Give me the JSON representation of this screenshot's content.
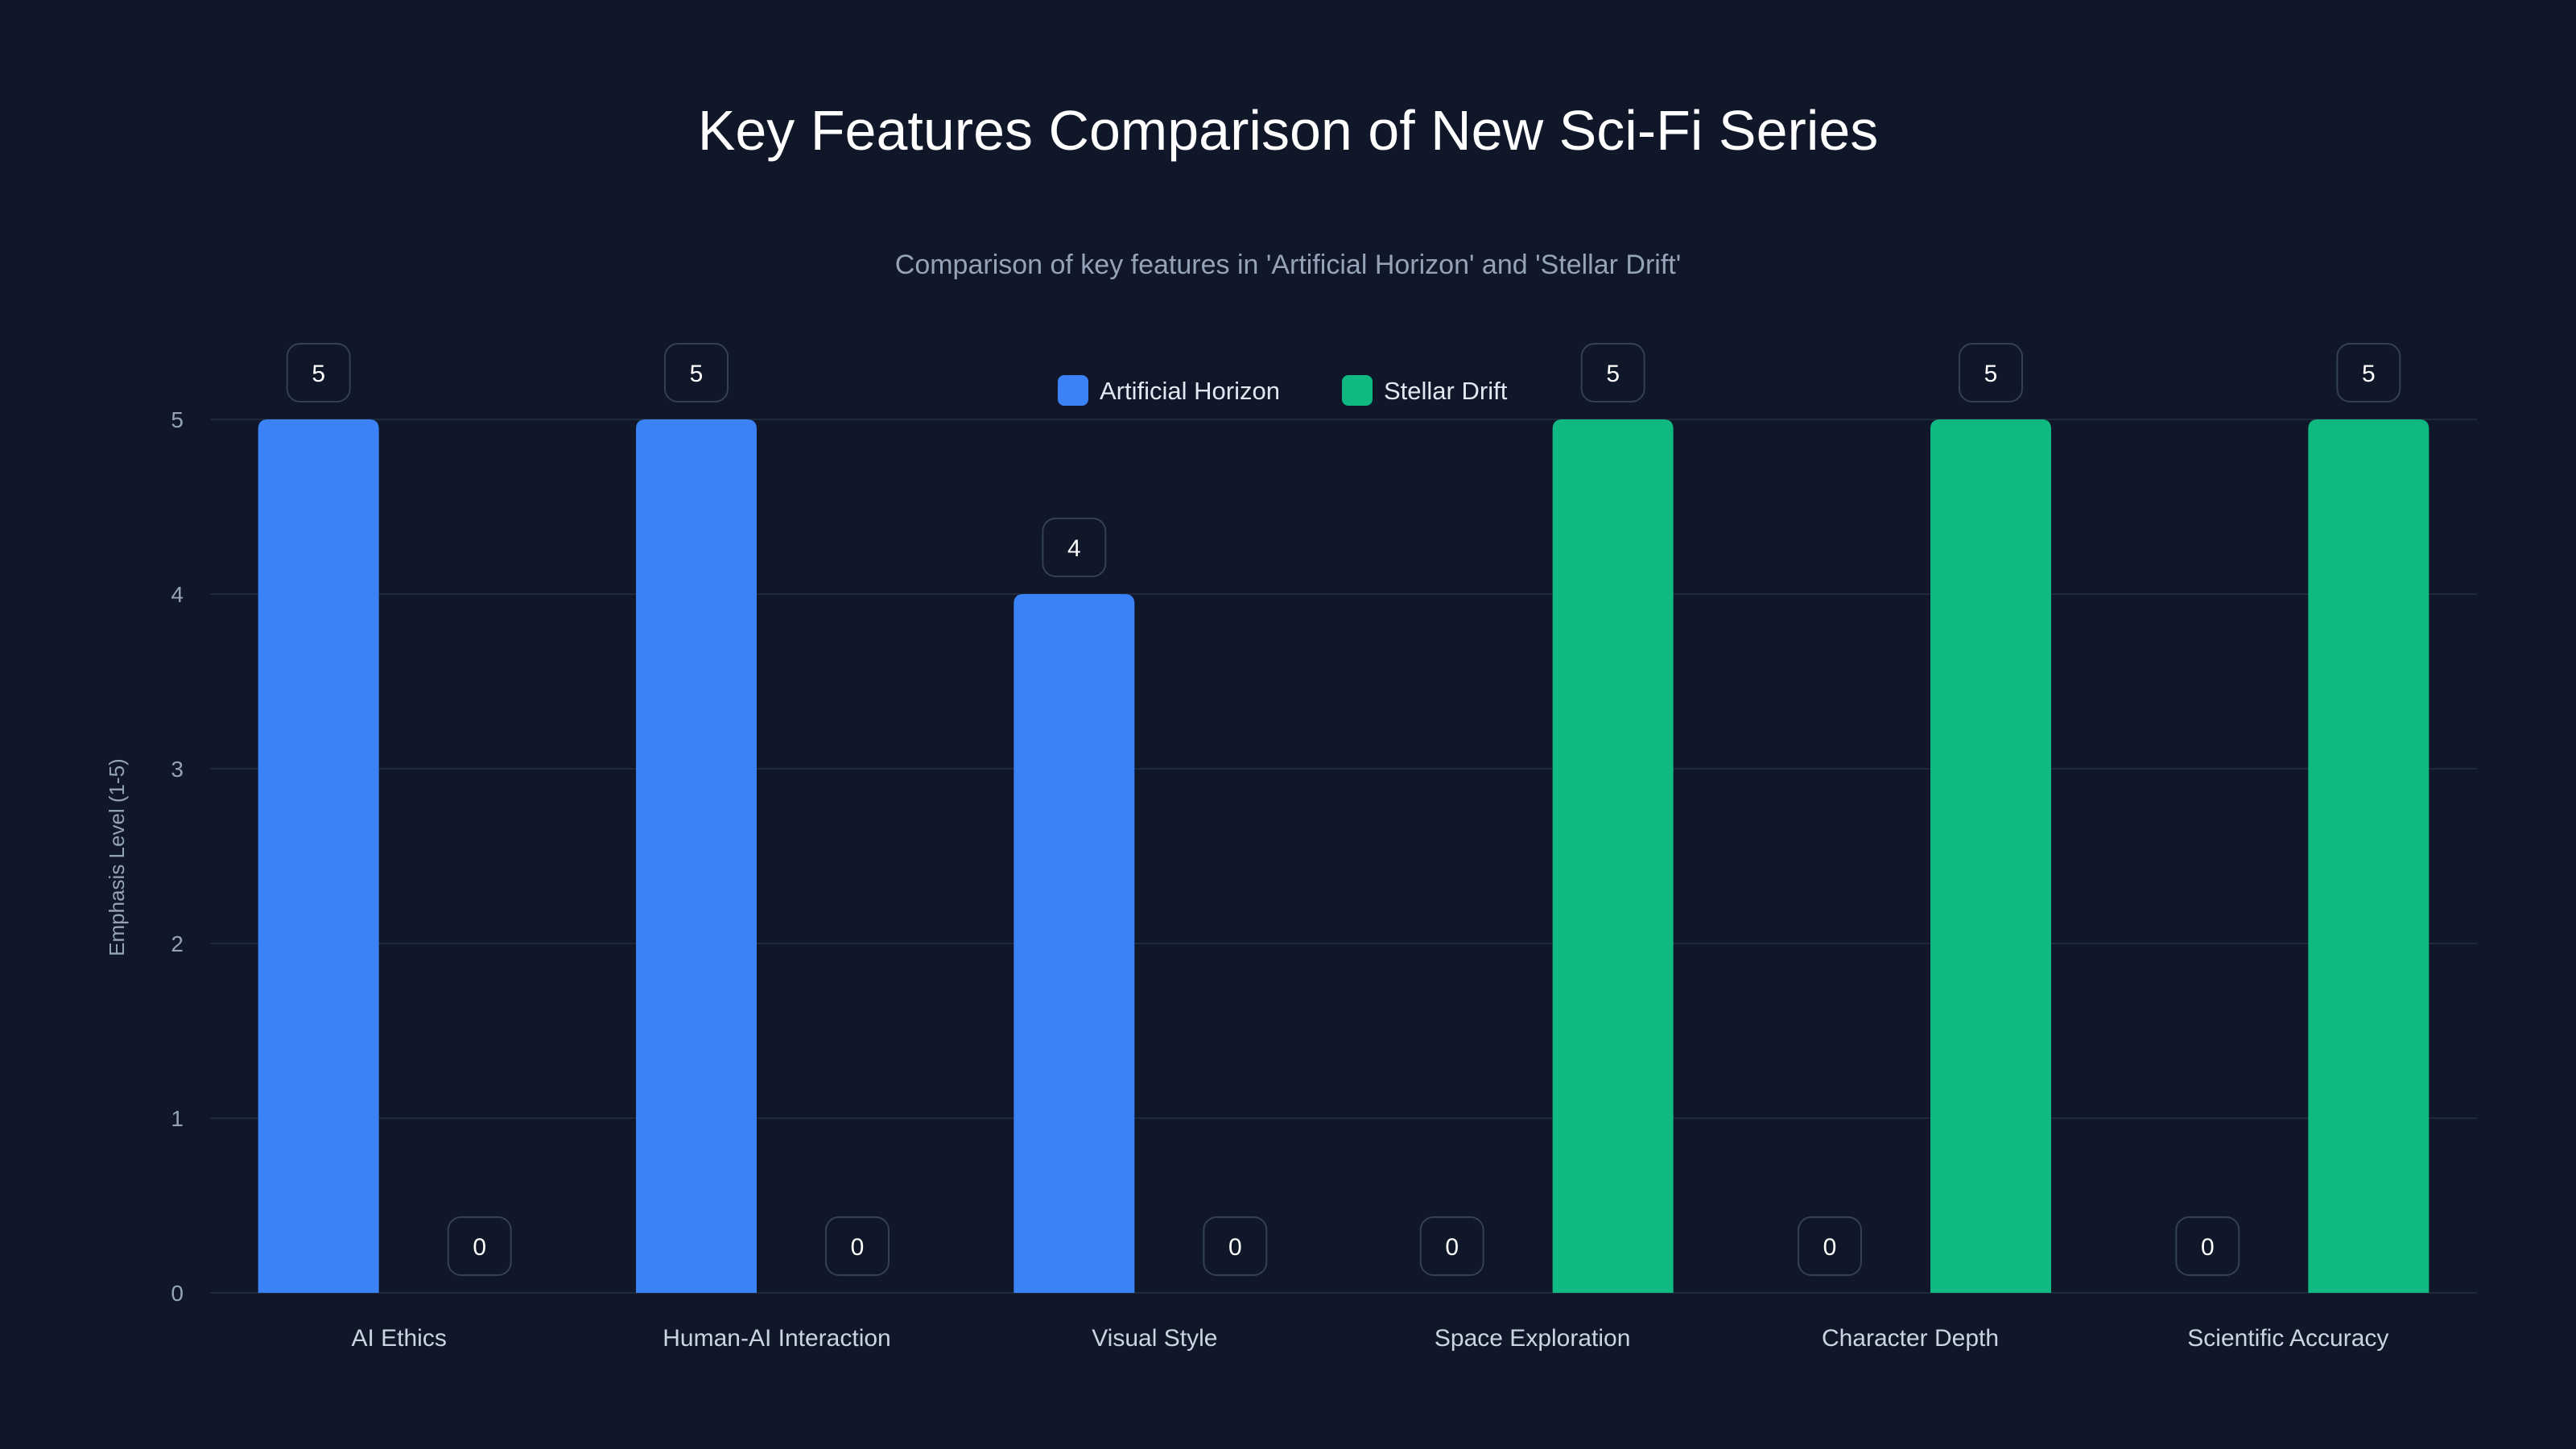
{
  "chart_data": {
    "type": "bar",
    "title": "Key Features Comparison of New Sci-Fi Series",
    "subtitle": "Comparison of key features in 'Artificial Horizon' and 'Stellar Drift'",
    "xlabel": "",
    "ylabel": "Emphasis Level (1-5)",
    "ylim": [
      0,
      5
    ],
    "yticks": [
      "0",
      "1",
      "2",
      "3",
      "4",
      "5"
    ],
    "grid": true,
    "legend_position": "top-center",
    "categories": [
      "AI Ethics",
      "Human-AI Interaction",
      "Visual Style",
      "Space Exploration",
      "Character Depth",
      "Scientific Accuracy"
    ],
    "series": [
      {
        "name": "Artificial Horizon",
        "color": "#3b82f6",
        "values": [
          5,
          5,
          4,
          0,
          0,
          0
        ]
      },
      {
        "name": "Stellar Drift",
        "color": "#10b981",
        "values": [
          0,
          0,
          0,
          5,
          5,
          5
        ]
      }
    ]
  }
}
